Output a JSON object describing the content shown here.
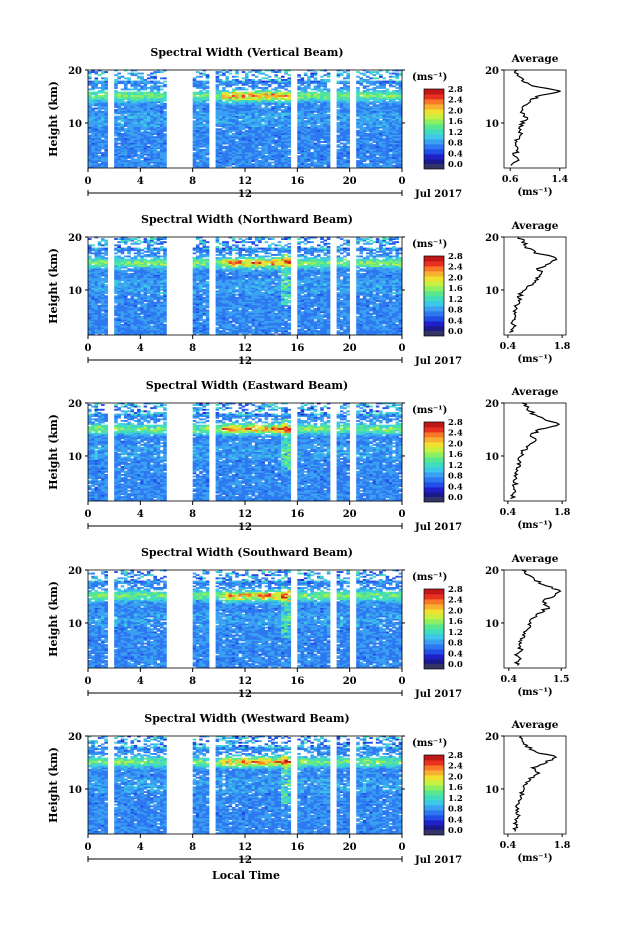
{
  "colors": {
    "scale": [
      "#1a1a8c",
      "#2020c8",
      "#1f4fe6",
      "#2d78f0",
      "#3aa0f2",
      "#3cc8e6",
      "#40dcc0",
      "#58e690",
      "#8cf060",
      "#c8f040",
      "#f0e030",
      "#f8b030",
      "#f87828",
      "#e83020",
      "#c01818"
    ],
    "bottom_swatch": "#333366",
    "missing": "#ffffff"
  },
  "chart_data": {
    "type": "heatmap",
    "layout": "five time-height panels with colorbars and height-averaged profiles",
    "grid": false,
    "shared": {
      "x_ticks": [
        "0",
        "4",
        "8",
        "12",
        "16",
        "20",
        "0"
      ],
      "x_date_label": "12",
      "x_month_label": "Jul 2017",
      "xlabel_bottom": "Local Time",
      "ylabel": "Height (km)",
      "y_ticks": [
        "20",
        "10"
      ],
      "ylim_km": [
        1.5,
        20
      ],
      "xlim_hours": [
        0,
        24
      ],
      "colorbar_label": "(ms⁻¹)",
      "colorbar_ticks": [
        "2.8",
        "2.4",
        "2.0",
        "1.6",
        "1.2",
        "0.8",
        "0.4",
        "0.0"
      ],
      "colorbar_range": [
        0.0,
        2.8
      ],
      "data_gaps_hours": [
        [
          1.3,
          2.0
        ],
        [
          5.8,
          7.9
        ],
        [
          9.1,
          9.6
        ],
        [
          15.5,
          15.9
        ],
        [
          18.3,
          19.0
        ],
        [
          19.8,
          20.4
        ]
      ],
      "profile_title": "Average",
      "profile_ylabel_ticks": [
        "20",
        "10"
      ],
      "profile_xunit": "(ms⁻¹)",
      "profile_heights_km": [
        2,
        3,
        4,
        5,
        6,
        7,
        8,
        9,
        10,
        11,
        12,
        13,
        14,
        15,
        16,
        17,
        18,
        19,
        20
      ]
    },
    "panels": [
      {
        "title": "Spectral Width (Vertical Beam)",
        "profile_xticks": [
          "0.6",
          "1.4"
        ],
        "profile_xlim": [
          0.5,
          1.5
        ],
        "profile_values": [
          0.62,
          0.7,
          0.66,
          0.74,
          0.7,
          0.72,
          0.78,
          0.74,
          0.8,
          0.86,
          0.78,
          0.82,
          0.9,
          1.05,
          1.4,
          0.95,
          0.8,
          0.72,
          0.68
        ]
      },
      {
        "title": "Spectral Width (Northward Beam)",
        "profile_xticks": [
          "0.4",
          "1.8"
        ],
        "profile_xlim": [
          0.3,
          1.9
        ],
        "profile_values": [
          0.5,
          0.55,
          0.52,
          0.6,
          0.58,
          0.62,
          0.68,
          0.72,
          0.8,
          1.0,
          1.15,
          1.3,
          1.2,
          1.45,
          1.7,
          1.1,
          0.9,
          0.8,
          0.7
        ]
      },
      {
        "title": "Spectral Width (Eastward Beam)",
        "profile_xticks": [
          "0.4",
          "1.8"
        ],
        "profile_xlim": [
          0.3,
          1.9
        ],
        "profile_values": [
          0.52,
          0.58,
          0.55,
          0.6,
          0.56,
          0.6,
          0.66,
          0.7,
          0.74,
          0.8,
          0.95,
          1.1,
          1.0,
          1.25,
          1.75,
          1.3,
          1.05,
          0.9,
          0.8
        ]
      },
      {
        "title": "Spectral Width (Southward Beam)",
        "profile_xticks": [
          "0.4",
          "1.5"
        ],
        "profile_xlim": [
          0.3,
          1.6
        ],
        "profile_values": [
          0.55,
          0.62,
          0.58,
          0.66,
          0.62,
          0.66,
          0.74,
          0.8,
          0.86,
          0.92,
          1.05,
          1.25,
          1.1,
          1.3,
          1.48,
          1.2,
          0.95,
          0.8,
          0.7
        ]
      },
      {
        "title": "Spectral Width (Westward Beam)",
        "profile_xticks": [
          "0.4",
          "1.8"
        ],
        "profile_xlim": [
          0.3,
          1.9
        ],
        "profile_values": [
          0.55,
          0.62,
          0.58,
          0.66,
          0.62,
          0.66,
          0.72,
          0.76,
          0.82,
          0.9,
          1.0,
          1.15,
          1.05,
          1.35,
          1.7,
          1.1,
          0.9,
          0.8,
          0.72
        ]
      }
    ]
  }
}
